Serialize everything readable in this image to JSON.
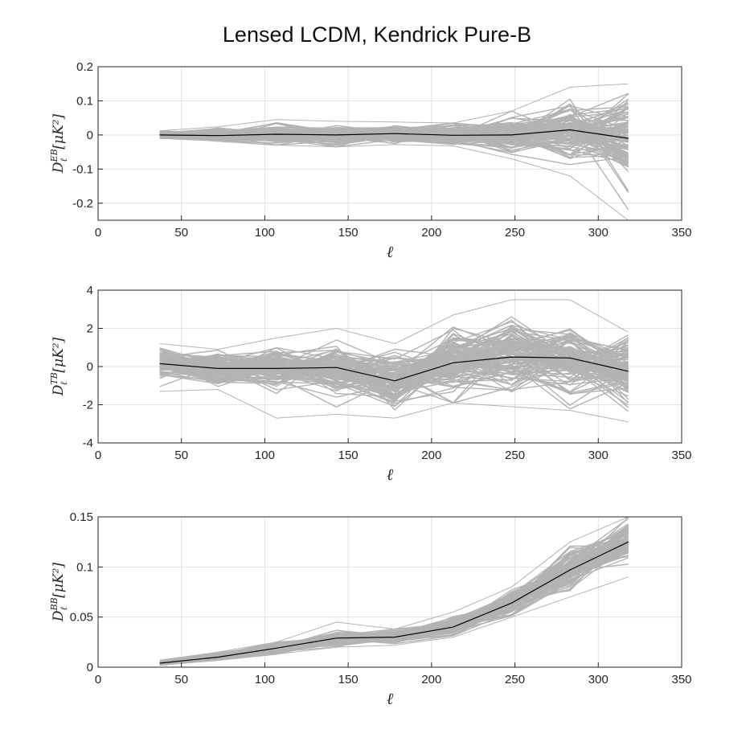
{
  "chart_data": {
    "type": "line",
    "title": "Lensed LCDM, Kendrick Pure-B",
    "ensemble_color": "#b3b3b3",
    "mean_color": "#000000",
    "ensemble_count": 120,
    "panels": [
      {
        "id": "EB",
        "xlabel": "ℓ",
        "ylabel": {
          "main": "D",
          "sup": "EB",
          "sub": "ℓ",
          "unit": "[μK²]"
        },
        "xlim": [
          0,
          350
        ],
        "ylim": [
          -0.25,
          0.2
        ],
        "xticks": [
          0,
          50,
          100,
          150,
          200,
          250,
          300,
          350
        ],
        "yticks": [
          -0.2,
          -0.1,
          0,
          0.1,
          0.2
        ],
        "ytick_labels": [
          "-0.2",
          "-0.1",
          "0",
          "0.1",
          "0.2"
        ],
        "grid": true,
        "x": [
          37,
          72,
          107,
          143,
          178,
          213,
          248,
          283,
          318
        ],
        "mean": [
          0.0,
          -0.002,
          0.002,
          0.0,
          0.004,
          -0.001,
          0.0,
          0.015,
          -0.01
        ],
        "spread": [
          0.006,
          0.009,
          0.014,
          0.013,
          0.011,
          0.013,
          0.025,
          0.04,
          0.06
        ],
        "outer_min": [
          -0.01,
          -0.018,
          -0.03,
          -0.035,
          -0.028,
          -0.032,
          -0.07,
          -0.12,
          -0.25
        ],
        "outer_max": [
          0.012,
          0.024,
          0.045,
          0.04,
          0.038,
          0.035,
          0.07,
          0.14,
          0.15
        ]
      },
      {
        "id": "TB",
        "xlabel": "ℓ",
        "ylabel": {
          "main": "D",
          "sup": "TB",
          "sub": "ℓ",
          "unit": "[μK²]"
        },
        "xlim": [
          0,
          350
        ],
        "ylim": [
          -4,
          4
        ],
        "xticks": [
          0,
          50,
          100,
          150,
          200,
          250,
          300,
          350
        ],
        "yticks": [
          -4,
          -2,
          0,
          2,
          4
        ],
        "ytick_labels": [
          "-4",
          "-2",
          "0",
          "2",
          "4"
        ],
        "grid": true,
        "x": [
          37,
          72,
          107,
          143,
          178,
          213,
          248,
          283,
          318
        ],
        "mean": [
          0.15,
          -0.1,
          -0.1,
          -0.05,
          -0.75,
          0.2,
          0.5,
          0.45,
          -0.25
        ],
        "spread": [
          0.4,
          0.42,
          0.5,
          0.55,
          0.7,
          0.8,
          0.9,
          0.85,
          0.8
        ],
        "outer_min": [
          -1.3,
          -1.2,
          -2.7,
          -2.5,
          -2.7,
          -1.9,
          -2.1,
          -2.3,
          -2.9
        ],
        "outer_max": [
          1.2,
          0.9,
          1.5,
          2.0,
          1.2,
          2.7,
          3.5,
          3.5,
          1.8
        ]
      },
      {
        "id": "BB",
        "xlabel": "ℓ",
        "ylabel": {
          "main": "D",
          "sup": "BB",
          "sub": "ℓ",
          "unit": "[μK²]"
        },
        "xlim": [
          0,
          350
        ],
        "ylim": [
          0,
          0.15
        ],
        "xticks": [
          0,
          50,
          100,
          150,
          200,
          250,
          300,
          350
        ],
        "yticks": [
          0,
          0.05,
          0.1,
          0.15
        ],
        "ytick_labels": [
          "0",
          "0.05",
          "0.1",
          "0.15"
        ],
        "grid": true,
        "x": [
          37,
          72,
          107,
          143,
          178,
          213,
          248,
          283,
          318
        ],
        "mean": [
          0.004,
          0.01,
          0.019,
          0.029,
          0.03,
          0.04,
          0.064,
          0.097,
          0.125
        ],
        "spread": [
          0.0012,
          0.002,
          0.003,
          0.003,
          0.003,
          0.004,
          0.005,
          0.008,
          0.009
        ],
        "outer_min": [
          0.002,
          0.007,
          0.013,
          0.02,
          0.022,
          0.03,
          0.05,
          0.07,
          0.09
        ],
        "outer_max": [
          0.007,
          0.015,
          0.025,
          0.045,
          0.038,
          0.055,
          0.08,
          0.125,
          0.155
        ]
      }
    ]
  }
}
